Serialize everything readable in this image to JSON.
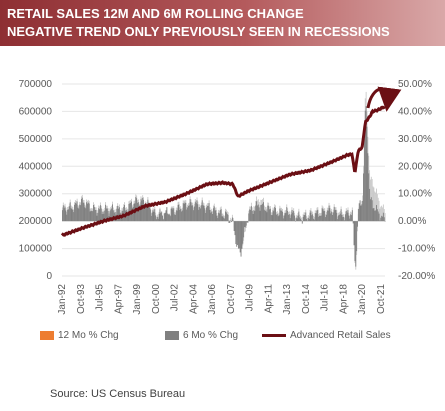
{
  "header": {
    "line1": "RETAIL SALES 12M AND 6M ROLLING CHANGE",
    "line2": "NEGATIVE TREND ONLY PREVIOUSLY SEEN IN RECESSIONS"
  },
  "source": "Source:  US Census Bureau",
  "chart_data": {
    "type": "line+bar",
    "left_axis": {
      "ticks": [
        "0",
        "100000",
        "200000",
        "300000",
        "400000",
        "500000",
        "600000",
        "700000"
      ],
      "range": [
        0,
        700000
      ]
    },
    "right_axis": {
      "ticks": [
        "-20.00%",
        "-10.00%",
        "0.00%",
        "10.00%",
        "20.00%",
        "30.00%",
        "40.00%",
        "50.00%"
      ],
      "range": [
        -20,
        50
      ]
    },
    "x_ticks": [
      "Jan-92",
      "Oct-93",
      "Jul-95",
      "Apr-97",
      "Jan-99",
      "Oct-00",
      "Jul-02",
      "Apr-04",
      "Jan-06",
      "Oct-07",
      "Jul-09",
      "Apr-11",
      "Jan-13",
      "Oct-14",
      "Jul-16",
      "Apr-18",
      "Jan-20",
      "Oct-21"
    ],
    "x_range_years": [
      1992.0,
      2023.2
    ],
    "series": [
      {
        "name": "12 Mo % Chg",
        "axis": "right",
        "color": "#ed7d31",
        "points": [
          [
            1992.0,
            5
          ],
          [
            1993.0,
            6
          ],
          [
            1994.0,
            8
          ],
          [
            1995.0,
            5
          ],
          [
            1996.0,
            5
          ],
          [
            1997.0,
            5
          ],
          [
            1998.0,
            5
          ],
          [
            1999.0,
            8
          ],
          [
            2000.0,
            8
          ],
          [
            2001.0,
            3
          ],
          [
            2002.0,
            3
          ],
          [
            2003.0,
            5
          ],
          [
            2004.0,
            7
          ],
          [
            2005.0,
            7
          ],
          [
            2006.0,
            6
          ],
          [
            2007.0,
            4
          ],
          [
            2007.9,
            3
          ],
          [
            2008.5,
            0
          ],
          [
            2008.9,
            -8
          ],
          [
            2009.2,
            -11
          ],
          [
            2009.6,
            -6
          ],
          [
            2010.0,
            4
          ],
          [
            2011.0,
            8
          ],
          [
            2012.0,
            5
          ],
          [
            2013.0,
            4
          ],
          [
            2014.0,
            4
          ],
          [
            2015.0,
            2
          ],
          [
            2016.0,
            3
          ],
          [
            2017.0,
            4
          ],
          [
            2018.0,
            5
          ],
          [
            2019.0,
            3
          ],
          [
            2020.0,
            4
          ],
          [
            2020.3,
            -19
          ],
          [
            2020.6,
            3
          ],
          [
            2021.0,
            10
          ],
          [
            2021.3,
            50
          ],
          [
            2021.7,
            15
          ],
          [
            2022.0,
            14
          ],
          [
            2022.5,
            8
          ],
          [
            2023.0,
            4
          ]
        ]
      },
      {
        "name": "6 Mo % Chg",
        "axis": "right",
        "color": "#808080",
        "points": [
          [
            1992.0,
            4
          ],
          [
            1993.0,
            5
          ],
          [
            1994.0,
            7
          ],
          [
            1995.0,
            4
          ],
          [
            1996.0,
            4
          ],
          [
            1997.0,
            4
          ],
          [
            1998.0,
            4
          ],
          [
            1999.0,
            7
          ],
          [
            2000.0,
            7
          ],
          [
            2001.0,
            2
          ],
          [
            2002.0,
            3
          ],
          [
            2003.0,
            4
          ],
          [
            2004.0,
            6
          ],
          [
            2005.0,
            6
          ],
          [
            2006.0,
            5
          ],
          [
            2007.0,
            3
          ],
          [
            2007.9,
            2
          ],
          [
            2008.5,
            -1
          ],
          [
            2008.9,
            -10
          ],
          [
            2009.2,
            -12
          ],
          [
            2009.6,
            -4
          ],
          [
            2010.0,
            3
          ],
          [
            2011.0,
            6
          ],
          [
            2012.0,
            4
          ],
          [
            2013.0,
            3
          ],
          [
            2014.0,
            3
          ],
          [
            2015.0,
            1
          ],
          [
            2016.0,
            2
          ],
          [
            2017.0,
            3
          ],
          [
            2018.0,
            4
          ],
          [
            2019.0,
            2
          ],
          [
            2020.0,
            3
          ],
          [
            2020.3,
            -18
          ],
          [
            2020.6,
            5
          ],
          [
            2021.0,
            8
          ],
          [
            2021.3,
            45
          ],
          [
            2021.7,
            8
          ],
          [
            2022.0,
            6
          ],
          [
            2022.5,
            3
          ],
          [
            2023.0,
            1
          ]
        ]
      },
      {
        "name": "Advanced Retail Sales",
        "axis": "left",
        "color": "#6b0f14",
        "points": [
          [
            1992.0,
            148000
          ],
          [
            1994.0,
            175000
          ],
          [
            1996.0,
            200000
          ],
          [
            1998.0,
            220000
          ],
          [
            2000.0,
            255000
          ],
          [
            2002.0,
            270000
          ],
          [
            2004.0,
            300000
          ],
          [
            2006.0,
            335000
          ],
          [
            2007.5,
            340000
          ],
          [
            2008.5,
            335000
          ],
          [
            2009.0,
            290000
          ],
          [
            2010.0,
            310000
          ],
          [
            2012.0,
            340000
          ],
          [
            2014.0,
            370000
          ],
          [
            2016.0,
            385000
          ],
          [
            2018.0,
            415000
          ],
          [
            2019.5,
            440000
          ],
          [
            2020.0,
            445000
          ],
          [
            2020.3,
            375000
          ],
          [
            2020.6,
            455000
          ],
          [
            2021.0,
            470000
          ],
          [
            2021.3,
            560000
          ],
          [
            2021.7,
            580000
          ],
          [
            2022.0,
            600000
          ],
          [
            2022.5,
            605000
          ],
          [
            2023.0,
            615000
          ]
        ]
      }
    ],
    "legend": [
      "12 Mo % Chg",
      "6 Mo % Chg",
      "Advanced Retail Sales"
    ],
    "annotation": "curved arrow near peak"
  }
}
